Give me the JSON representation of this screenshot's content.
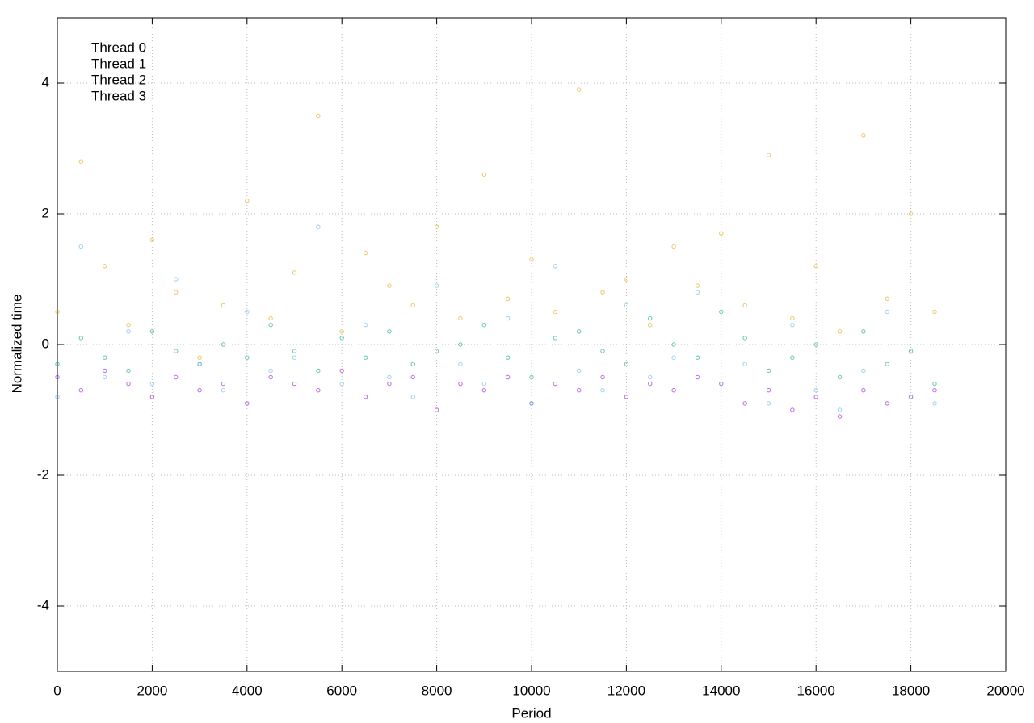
{
  "chart_data": {
    "type": "scatter",
    "xlabel": "Period",
    "ylabel": "Normalized time",
    "xlim": [
      0,
      20000
    ],
    "ylim": [
      -5,
      5
    ],
    "xticks": [
      0,
      2000,
      4000,
      6000,
      8000,
      10000,
      12000,
      14000,
      16000,
      18000,
      20000
    ],
    "yticks": [
      -4,
      -2,
      0,
      2,
      4
    ],
    "grid": true,
    "legend": "top-left",
    "x": [
      0,
      500,
      1000,
      1500,
      2000,
      2500,
      3000,
      3500,
      4000,
      4500,
      5000,
      5500,
      6000,
      6500,
      7000,
      7500,
      8000,
      8500,
      9000,
      9500,
      10000,
      10500,
      11000,
      11500,
      12000,
      12500,
      13000,
      13500,
      14000,
      14500,
      15000,
      15500,
      16000,
      16500,
      17000,
      17500,
      18000,
      18500
    ],
    "series": [
      {
        "name": "Thread 0",
        "color": "#9400d3",
        "values": [
          -0.5,
          -0.7,
          -0.4,
          -0.6,
          -0.8,
          -0.5,
          -0.7,
          -0.6,
          -0.9,
          -0.5,
          -0.6,
          -0.7,
          -0.4,
          -0.8,
          -0.6,
          -0.5,
          -1.0,
          -0.6,
          -0.7,
          -0.5,
          -0.9,
          -0.6,
          -0.7,
          -0.5,
          -0.8,
          -0.6,
          -0.7,
          -0.5,
          -0.6,
          -0.9,
          -0.7,
          -1.0,
          -0.8,
          -1.1,
          -0.7,
          -0.9,
          -0.8,
          -0.7
        ]
      },
      {
        "name": "Thread 1",
        "color": "#009e73",
        "values": [
          -0.3,
          0.1,
          -0.2,
          -0.4,
          0.2,
          -0.1,
          -0.3,
          0.0,
          -0.2,
          0.3,
          -0.1,
          -0.4,
          0.1,
          -0.2,
          0.2,
          -0.3,
          -0.1,
          0.0,
          0.3,
          -0.2,
          -0.5,
          0.1,
          0.2,
          -0.1,
          -0.3,
          0.4,
          0.0,
          -0.2,
          0.5,
          0.1,
          -0.4,
          -0.2,
          0.0,
          -0.5,
          0.2,
          -0.3,
          -0.1,
          -0.6
        ]
      },
      {
        "name": "Thread 2",
        "color": "#56b4e9",
        "values": [
          -0.8,
          1.5,
          -0.5,
          0.2,
          -0.6,
          1.0,
          -0.3,
          -0.7,
          0.5,
          -0.4,
          -0.2,
          1.8,
          -0.6,
          0.3,
          -0.5,
          -0.8,
          0.9,
          -0.3,
          -0.6,
          0.4,
          -0.9,
          1.2,
          -0.4,
          -0.7,
          0.6,
          -0.5,
          -0.2,
          0.8,
          -0.6,
          -0.3,
          -0.9,
          0.3,
          -0.7,
          -1.0,
          -0.4,
          0.5,
          -0.8,
          -0.9
        ]
      },
      {
        "name": "Thread 3",
        "color": "#e69f00",
        "values": [
          0.5,
          2.8,
          1.2,
          0.3,
          1.6,
          0.8,
          -0.2,
          0.6,
          2.2,
          0.4,
          1.1,
          3.5,
          0.2,
          1.4,
          0.9,
          0.6,
          1.8,
          0.4,
          2.6,
          0.7,
          1.3,
          0.5,
          3.9,
          0.8,
          1.0,
          0.3,
          1.5,
          0.9,
          1.7,
          0.6,
          2.9,
          0.4,
          1.2,
          0.2,
          3.2,
          0.7,
          2.0,
          0.5
        ]
      }
    ]
  }
}
